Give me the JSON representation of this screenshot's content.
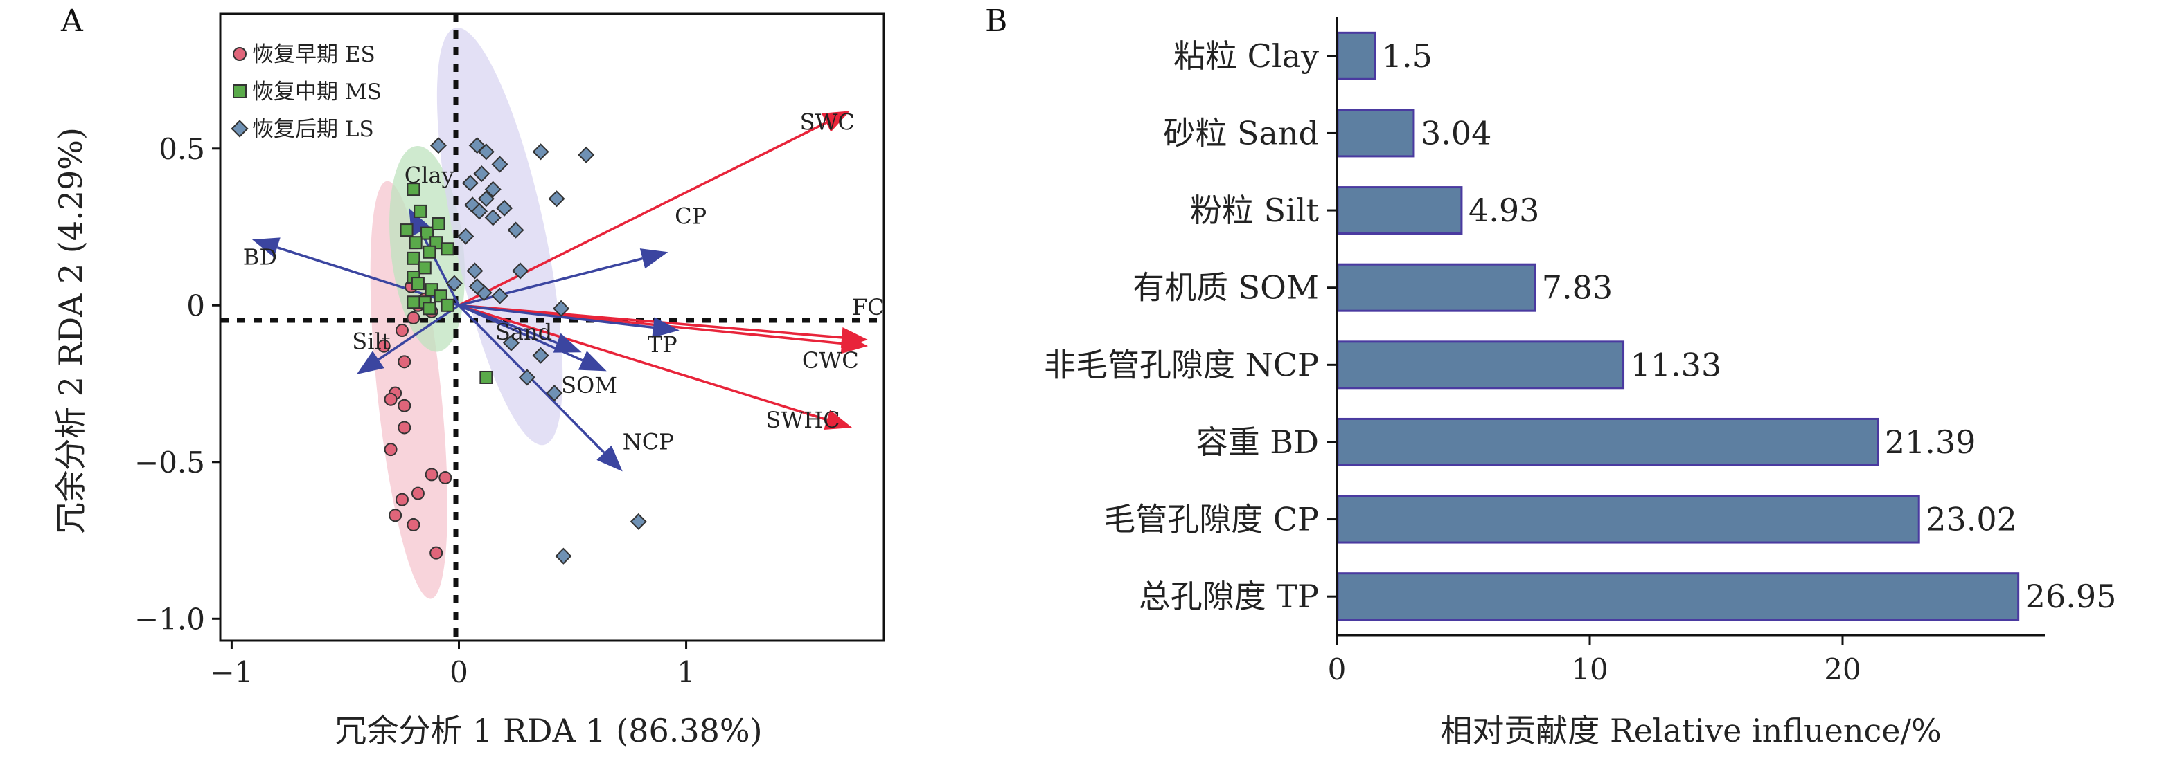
{
  "panels": {
    "a_label": "A",
    "b_label": "B"
  },
  "colors": {
    "es": "#e0657a",
    "ms": "#5aaa4a",
    "ls": "#6f91b4",
    "es_ellipse": "#f6c6cf",
    "ms_ellipse": "#bfe3bf",
    "ls_ellipse": "#d9d6f2",
    "arrow_red": "#e8243a",
    "arrow_blue": "#3b45a0",
    "bar_fill": "#5d7fa1",
    "bar_stroke": "#4a3aa0"
  },
  "chart_data": [
    {
      "type": "scatter",
      "xlabel": "冗余分析 1 RDA 1 (86.38%)",
      "ylabel": "冗余分析 2 RDA 2 (4.29%)",
      "xlim": [
        -1.05,
        1.87
      ],
      "ylim": [
        -1.07,
        0.93
      ],
      "x_ticks": [
        -1,
        0,
        1
      ],
      "y_ticks": [
        -1.0,
        -0.5,
        0,
        0.5
      ],
      "x_tick_labels": [
        "−1",
        "0",
        "1"
      ],
      "y_tick_labels": [
        "−1.0",
        "−0.5",
        "0",
        "0.5"
      ],
      "grid": false,
      "legend_position": "top-left",
      "series": [
        {
          "name": "恢复早期 ES",
          "marker": "circle",
          "points": [
            [
              -0.12,
              -0.54
            ],
            [
              -0.06,
              -0.55
            ],
            [
              -0.18,
              -0.6
            ],
            [
              -0.25,
              -0.62
            ],
            [
              -0.28,
              -0.67
            ],
            [
              -0.2,
              -0.7
            ],
            [
              -0.1,
              -0.79
            ],
            [
              -0.3,
              -0.46
            ],
            [
              -0.24,
              -0.39
            ],
            [
              -0.28,
              -0.28
            ],
            [
              -0.3,
              -0.3
            ],
            [
              -0.24,
              -0.32
            ],
            [
              -0.33,
              -0.13
            ],
            [
              -0.25,
              -0.08
            ],
            [
              -0.2,
              -0.04
            ],
            [
              -0.18,
              0.0
            ],
            [
              -0.15,
              0.02
            ],
            [
              -0.12,
              -0.02
            ],
            [
              -0.21,
              0.06
            ],
            [
              -0.24,
              -0.18
            ]
          ]
        },
        {
          "name": "恢复中期 MS",
          "marker": "square",
          "points": [
            [
              -0.2,
              0.37
            ],
            [
              -0.17,
              0.3
            ],
            [
              -0.23,
              0.24
            ],
            [
              -0.14,
              0.23
            ],
            [
              -0.19,
              0.2
            ],
            [
              -0.2,
              0.15
            ],
            [
              -0.1,
              0.2
            ],
            [
              -0.05,
              0.18
            ],
            [
              -0.15,
              0.12
            ],
            [
              -0.2,
              0.09
            ],
            [
              -0.18,
              0.07
            ],
            [
              -0.12,
              0.05
            ],
            [
              -0.08,
              0.03
            ],
            [
              -0.15,
              0.01
            ],
            [
              -0.05,
              0.0
            ],
            [
              -0.13,
              -0.01
            ],
            [
              -0.2,
              0.01
            ],
            [
              0.12,
              -0.23
            ],
            [
              -0.09,
              0.26
            ],
            [
              -0.13,
              0.17
            ]
          ]
        },
        {
          "name": "恢复后期 LS",
          "marker": "diamond",
          "points": [
            [
              -0.09,
              0.51
            ],
            [
              0.08,
              0.51
            ],
            [
              0.12,
              0.49
            ],
            [
              0.18,
              0.45
            ],
            [
              0.1,
              0.42
            ],
            [
              0.05,
              0.39
            ],
            [
              0.15,
              0.37
            ],
            [
              0.12,
              0.34
            ],
            [
              0.2,
              0.31
            ],
            [
              0.06,
              0.32
            ],
            [
              0.09,
              0.3
            ],
            [
              0.15,
              0.28
            ],
            [
              0.36,
              0.49
            ],
            [
              0.56,
              0.48
            ],
            [
              0.43,
              0.34
            ],
            [
              0.03,
              0.22
            ],
            [
              0.07,
              0.11
            ],
            [
              0.27,
              0.11
            ],
            [
              0.11,
              0.04
            ],
            [
              0.18,
              0.03
            ],
            [
              -0.02,
              0.07
            ],
            [
              0.79,
              -0.69
            ],
            [
              0.46,
              -0.8
            ],
            [
              0.42,
              -0.28
            ],
            [
              0.3,
              -0.23
            ],
            [
              0.36,
              -0.16
            ],
            [
              0.23,
              -0.12
            ],
            [
              0.45,
              -0.01
            ],
            [
              0.08,
              0.06
            ],
            [
              0.25,
              0.24
            ]
          ]
        }
      ],
      "ellipses": [
        {
          "group": "恢复早期 ES",
          "cx": -0.22,
          "cy": -0.27,
          "rx": 0.14,
          "ry": 0.67,
          "rotate": -6
        },
        {
          "group": "恢复中期 MS",
          "cx": -0.14,
          "cy": 0.18,
          "rx": 0.16,
          "ry": 0.33,
          "rotate": -6
        },
        {
          "group": "恢复后期 LS",
          "cx": 0.18,
          "cy": 0.22,
          "rx": 0.2,
          "ry": 0.68,
          "rotate": -12
        }
      ],
      "vectors": [
        {
          "label": "SWC",
          "x": 1.72,
          "y": 0.62,
          "color": "red",
          "label_x": 1.5,
          "label_y": 0.56
        },
        {
          "label": "FC",
          "x": 1.8,
          "y": -0.11,
          "color": "red",
          "label_x": 1.73,
          "label_y": -0.03
        },
        {
          "label": "CWC",
          "x": 1.8,
          "y": -0.13,
          "color": "red",
          "label_x": 1.51,
          "label_y": -0.2
        },
        {
          "label": "SWHC",
          "x": 1.73,
          "y": -0.39,
          "color": "red",
          "label_x": 1.35,
          "label_y": -0.39
        },
        {
          "label": "CP",
          "x": 0.92,
          "y": 0.17,
          "color": "blue",
          "label_x": 0.95,
          "label_y": 0.26
        },
        {
          "label": "TP",
          "x": 0.97,
          "y": -0.08,
          "color": "blue",
          "label_x": 0.83,
          "label_y": -0.15
        },
        {
          "label": "SOM",
          "x": 0.65,
          "y": -0.21,
          "color": "blue",
          "label_x": 0.45,
          "label_y": -0.28
        },
        {
          "label": "NCP",
          "x": 0.72,
          "y": -0.53,
          "color": "blue",
          "label_x": 0.72,
          "label_y": -0.46
        },
        {
          "label": "Sand",
          "x": 0.54,
          "y": -0.15,
          "color": "blue",
          "label_x": 0.16,
          "label_y": -0.11
        },
        {
          "label": "BD",
          "x": -0.91,
          "y": 0.21,
          "color": "blue",
          "label_x": -0.95,
          "label_y": 0.13
        },
        {
          "label": "Clay",
          "x": -0.22,
          "y": 0.31,
          "color": "blue",
          "label_x": -0.24,
          "label_y": 0.39
        },
        {
          "label": "Silt",
          "x": -0.45,
          "y": -0.22,
          "color": "blue",
          "label_x": -0.47,
          "label_y": -0.14
        }
      ]
    },
    {
      "type": "bar",
      "orientation": "horizontal",
      "xlabel": "相对贡献度 Relative influence/%",
      "xlim": [
        0,
        28
      ],
      "x_ticks": [
        0,
        10,
        20
      ],
      "categories": [
        "粘粒 Clay",
        "砂粒 Sand",
        "粉粒 Silt",
        "有机质 SOM",
        "非毛管孔隙度 NCP",
        "容重 BD",
        "毛管孔隙度 CP",
        "总孔隙度 TP"
      ],
      "values": [
        1.5,
        3.04,
        4.93,
        7.83,
        11.33,
        21.39,
        23.02,
        26.95
      ],
      "value_labels": [
        "1.5",
        "3.04",
        "4.93",
        "7.83",
        "11.33",
        "21.39",
        "23.02",
        "26.95"
      ]
    }
  ]
}
